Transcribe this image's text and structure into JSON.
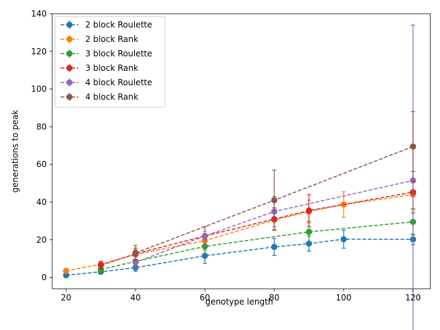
{
  "chart_data": {
    "type": "line",
    "title": "",
    "xlabel": "genotype length",
    "ylabel": "generations to peak",
    "xlim": [
      16,
      125
    ],
    "ylim": [
      -6,
      140
    ],
    "xticks": [
      20,
      40,
      60,
      80,
      100,
      120
    ],
    "yticks": [
      0,
      20,
      40,
      60,
      80,
      100,
      120,
      140
    ],
    "grid": false,
    "legend_position": "top-left",
    "line_style": "dashed",
    "marker": "circle",
    "error_bars": true,
    "series": [
      {
        "name": "2 block Roulette",
        "color": "#1f77b4",
        "x": [
          20,
          30,
          40,
          60,
          80,
          90,
          100,
          120
        ],
        "y": [
          1.2,
          3.0,
          5.2,
          11.5,
          16.2,
          18.0,
          20.3,
          20.2
        ],
        "err": [
          0.7,
          1.2,
          2.0,
          4.0,
          4.5,
          4.0,
          4.8,
          2.8
        ]
      },
      {
        "name": "2 block Rank",
        "color": "#ff7f0e",
        "x": [
          20,
          30,
          40,
          60,
          80,
          90,
          100,
          120
        ],
        "y": [
          3.5,
          7.0,
          12.2,
          19.5,
          30.5,
          35.0,
          38.7,
          44.0
        ],
        "err": [
          0.8,
          1.5,
          2.5,
          5.0,
          5.0,
          6.0,
          6.8,
          8.0
        ]
      },
      {
        "name": "3 block Roulette",
        "color": "#2ca02c",
        "x": [
          30,
          40,
          60,
          90,
          120
        ],
        "y": [
          4.2,
          8.5,
          16.5,
          24.2,
          29.5
        ],
        "err": [
          2.0,
          3.5,
          4.0,
          5.5,
          7.0
        ]
      },
      {
        "name": "3 block Rank",
        "color": "#d62728",
        "x": [
          30,
          40,
          60,
          80,
          90,
          120
        ],
        "y": [
          6.5,
          12.5,
          22.0,
          31.0,
          35.5,
          45.3
        ],
        "err": [
          2.0,
          3.0,
          5.0,
          6.0,
          8.5,
          11.0
        ]
      },
      {
        "name": "4 block Roulette",
        "color": "#9467bd",
        "x": [
          40,
          60,
          80,
          120
        ],
        "y": [
          8.0,
          22.0,
          35.0,
          51.5
        ],
        "err": [
          3.0,
          5.0,
          8.0,
          82.5
        ]
      },
      {
        "name": "4 block Rank",
        "color": "#8c564b",
        "x": [
          40,
          80,
          120
        ],
        "y": [
          13.0,
          41.0,
          69.5
        ],
        "err": [
          4.0,
          16.0,
          18.5
        ]
      }
    ]
  }
}
